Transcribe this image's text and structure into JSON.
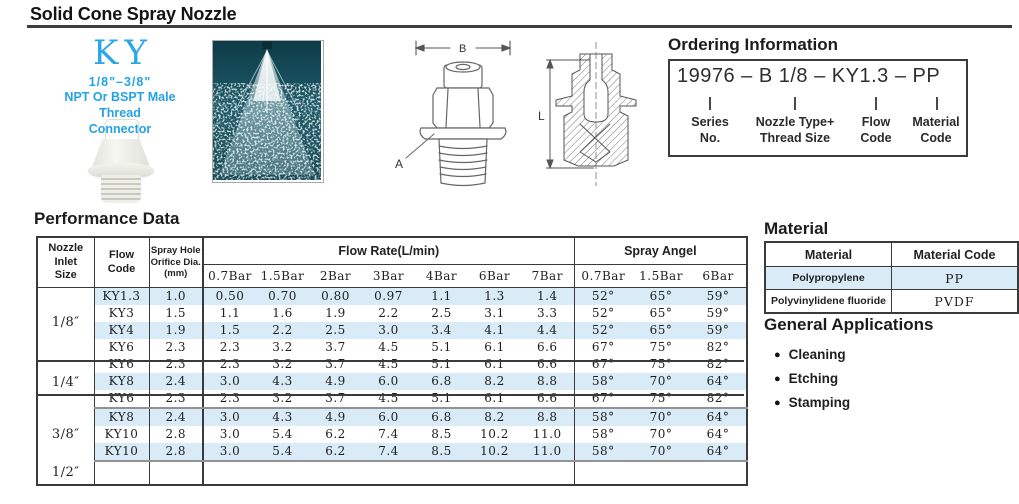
{
  "page": {
    "title": "Solid Cone Spray Nozzle"
  },
  "brand": {
    "logo": "KY",
    "size_range": "1/8\"–3/8\"",
    "thread_line1": "NPT Or  BSPT Male Thread",
    "thread_line2": "Connector"
  },
  "ordering": {
    "heading": "Ordering Information",
    "code": "19976 – B 1/8 – KY1.3 – PP",
    "labels": [
      {
        "line1": "Series",
        "line2": "No."
      },
      {
        "line1": "Nozzle Type+",
        "line2": "Thread Size"
      },
      {
        "line1": "Flow",
        "line2": "Code"
      },
      {
        "line1": "Material",
        "line2": "Code"
      }
    ]
  },
  "drawings": {
    "dim_b": "B",
    "dim_a": "A",
    "dim_l": "L"
  },
  "performance": {
    "heading": "Performance Data",
    "headers": {
      "inlet_lines": [
        "Nozzle",
        "Inlet",
        "Size"
      ],
      "flow_code_lines": [
        "Flow",
        "Code"
      ],
      "orifice_lines": [
        "Spray Hole",
        "Orifice Dia.",
        "(mm)"
      ],
      "flow_rate_group": "Flow  Rate(L/min)",
      "spray_angle_group": "Spray Angel"
    },
    "flow_rate_bars": [
      "0.7Bar",
      "1.5Bar",
      "2Bar",
      "3Bar",
      "4Bar",
      "6Bar",
      "7Bar"
    ],
    "spray_angle_bars": [
      "0.7Bar",
      "1.5Bar",
      "6Bar"
    ],
    "rows": [
      {
        "inlet": "1/8″",
        "span": 4,
        "code": "KY1.3",
        "orifice": "1.0",
        "flow": [
          "0.50",
          "0.70",
          "0.80",
          "0.97",
          "1.1",
          "1.3",
          "1.4"
        ],
        "angle": [
          "52°",
          "65°",
          "59°"
        ],
        "shade": true
      },
      {
        "code": "KY3",
        "orifice": "1.5",
        "flow": [
          "1.1",
          "1.6",
          "1.9",
          "2.2",
          "2.5",
          "3.1",
          "3.3"
        ],
        "angle": [
          "52°",
          "65°",
          "59°"
        ]
      },
      {
        "code": "KY4",
        "orifice": "1.9",
        "flow": [
          "1.5",
          "2.2",
          "2.5",
          "3.0",
          "3.4",
          "4.1",
          "4.4"
        ],
        "angle": [
          "52°",
          "65°",
          "59°"
        ],
        "shade": true
      },
      {
        "code": "KY6",
        "orifice": "2.3",
        "flow": [
          "2.3",
          "3.2",
          "3.7",
          "4.5",
          "5.1",
          "6.1",
          "6.6"
        ],
        "angle": [
          "67°",
          "75°",
          "82°"
        ]
      },
      {
        "inlet": "1/4″",
        "span": 3,
        "code": "KY6",
        "orifice": "2.3",
        "flow": [
          "2.3",
          "3.2",
          "3.7",
          "4.5",
          "5.1",
          "6.1",
          "6.6"
        ],
        "angle": [
          "67°",
          "75°",
          "82°"
        ],
        "crossed": true
      },
      {
        "code": "KY8",
        "orifice": "2.4",
        "flow": [
          "3.0",
          "4.3",
          "4.9",
          "6.0",
          "6.8",
          "8.2",
          "8.8"
        ],
        "angle": [
          "58°",
          "70°",
          "64°"
        ],
        "shade": true
      },
      {
        "code": "KY6",
        "orifice": "2.3",
        "flow": [
          "2.3",
          "3.2",
          "3.7",
          "4.5",
          "5.1",
          "6.1",
          "6.6"
        ],
        "angle": [
          "67°",
          "75°",
          "82°"
        ],
        "crossed": true,
        "group_end": true
      },
      {
        "inlet": "3/8″",
        "span": 3,
        "code": "KY8",
        "orifice": "2.4",
        "flow": [
          "3.0",
          "4.3",
          "4.9",
          "6.0",
          "6.8",
          "8.2",
          "8.8"
        ],
        "angle": [
          "58°",
          "70°",
          "64°"
        ],
        "shade": true
      },
      {
        "code": "KY10",
        "orifice": "2.8",
        "flow": [
          "3.0",
          "5.4",
          "6.2",
          "7.4",
          "8.5",
          "10.2",
          "11.0"
        ],
        "angle": [
          "58°",
          "70°",
          "64°"
        ]
      },
      {
        "code": "KY10",
        "orifice": "2.8",
        "flow": [
          "3.0",
          "5.4",
          "6.2",
          "7.4",
          "8.5",
          "10.2",
          "11.0"
        ],
        "angle": [
          "58°",
          "70°",
          "64°"
        ],
        "shade": true,
        "group_end": true
      },
      {
        "inlet": "1/2″",
        "span": 1,
        "code": "",
        "orifice": "",
        "flow": [
          "",
          "",
          "",
          "",
          "",
          "",
          ""
        ],
        "angle": [
          "",
          "",
          ""
        ],
        "last": true
      }
    ]
  },
  "material": {
    "heading": "Material",
    "headers": [
      "Material",
      "Material Code"
    ],
    "rows": [
      {
        "name": "Polypropylene",
        "code": "PP",
        "shade": true
      },
      {
        "name": "Polyvinylidene fluoride",
        "code": "PVDF"
      }
    ]
  },
  "applications": {
    "heading": "General Applications",
    "items": [
      "Cleaning",
      "Etching",
      "Stamping"
    ]
  },
  "colors": {
    "accent_cyan": "#29a7e4",
    "row_stripe": "#d8ebf7",
    "photo_teal": "#17505c"
  }
}
